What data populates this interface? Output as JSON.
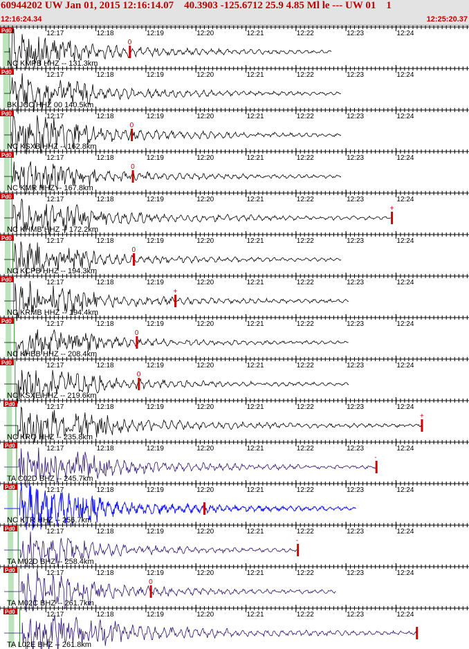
{
  "header": {
    "title": "60944202 UW Jan 01, 2015 12:16:14.07    40.3903 -125.6712 25.9 4.85 Ml le --- UW 01    1",
    "start_time": "12:16:24.34",
    "end_time": "12:25:20.37"
  },
  "time_ticks": [
    "12:17",
    "12:18",
    "12:19",
    "12:20",
    "12:21",
    "12:22",
    "12:23",
    "12:24"
  ],
  "colors": {
    "black_trace": "#000000",
    "purple_trace": "#2a1070",
    "blue_trace": "#1a1aff",
    "pick": "#d00000",
    "window_green": "#8fd08f",
    "tag_red": "#d00000"
  },
  "traces": [
    {
      "label": "NC KMPB HHZ -- 131.3km",
      "tag": "Pd0",
      "color": "black",
      "pick_marker": "0",
      "pick_min": 2.68,
      "end_min": 6.7,
      "long_end_min": null,
      "amp": 24
    },
    {
      "label": "BK JCC HHZ 00 140.5km",
      "tag": "Pd0",
      "color": "black",
      "pick_marker": "",
      "pick_min": null,
      "end_min": 6.9,
      "long_end_min": null,
      "amp": 22
    },
    {
      "label": "NC KSXB HHZ -- 162.8km",
      "tag": "Pd0",
      "color": "black",
      "pick_marker": "0",
      "pick_min": 2.72,
      "end_min": 6.9,
      "long_end_min": null,
      "amp": 26
    },
    {
      "label": "NC KMR HHZ -- 167.8km",
      "tag": "Pd0",
      "color": "black",
      "pick_marker": "0",
      "pick_min": 2.74,
      "end_min": 6.9,
      "long_end_min": null,
      "amp": 20
    },
    {
      "label": "NC KHMB HHZ -- 172.2km",
      "tag": "Pd0",
      "color": "black",
      "pick_marker": "+",
      "pick_min": 7.92,
      "end_min": 7.9,
      "long_end_min": null,
      "amp": 22
    },
    {
      "label": "NC KCPB HHZ -- 194.3km",
      "tag": "Pd0",
      "color": "black",
      "pick_marker": "0",
      "pick_min": 2.76,
      "end_min": 6.9,
      "long_end_min": null,
      "amp": 20
    },
    {
      "label": "NC KRMB HHZ -- 194.4km",
      "tag": "Pd0",
      "color": "black",
      "pick_marker": "+",
      "pick_min": 3.59,
      "end_min": 7.05,
      "long_end_min": null,
      "amp": 22
    },
    {
      "label": "NC KHBB HHZ -- 208.4km",
      "tag": "Pd0",
      "color": "black",
      "pick_marker": "0",
      "pick_min": 2.82,
      "end_min": 7.05,
      "long_end_min": null,
      "amp": 18
    },
    {
      "label": "NC KSXE HHZ -- 219.6km",
      "tag": "Pd0",
      "color": "black",
      "pick_marker": "0",
      "pick_min": 2.86,
      "end_min": 7.05,
      "long_end_min": null,
      "amp": 20
    },
    {
      "label": "NC KRO HHZ -- 235.8km",
      "tag": "Pd0",
      "color": "black",
      "pick_marker": "+",
      "pick_min": 8.52,
      "end_min": 8.5,
      "long_end_min": null,
      "amp": 22
    },
    {
      "label": "TA C02D BHZ -- 245.7km",
      "tag": "Pd0",
      "color": "purple",
      "pick_marker": "-",
      "pick_min": 7.61,
      "end_min": 7.6,
      "long_end_min": null,
      "amp": 26
    },
    {
      "label": "NC KTR HHZ -- 256.7km",
      "tag": "Pd0",
      "color": "blue",
      "pick_marker": "",
      "pick_min": 4.17,
      "end_min": 7.2,
      "long_end_min": null,
      "amp": 28
    },
    {
      "label": "TA M02D BHZ -- 258.4km",
      "tag": "Pd0",
      "color": "purple",
      "pick_marker": "-",
      "pick_min": 6.04,
      "end_min": 6.0,
      "long_end_min": null,
      "amp": 26
    },
    {
      "label": "TA M02C BHZ -- 261.7km",
      "tag": "Pd0",
      "color": "purple",
      "pick_marker": "0",
      "pick_min": 3.1,
      "end_min": 6.8,
      "long_end_min": null,
      "amp": 26
    },
    {
      "label": "TA L02E BHZ -- 261.8km",
      "tag": "Pd0",
      "color": "purple",
      "pick_marker": "",
      "pick_min": 8.42,
      "end_min": 8.4,
      "long_end_min": null,
      "amp": 28
    }
  ]
}
